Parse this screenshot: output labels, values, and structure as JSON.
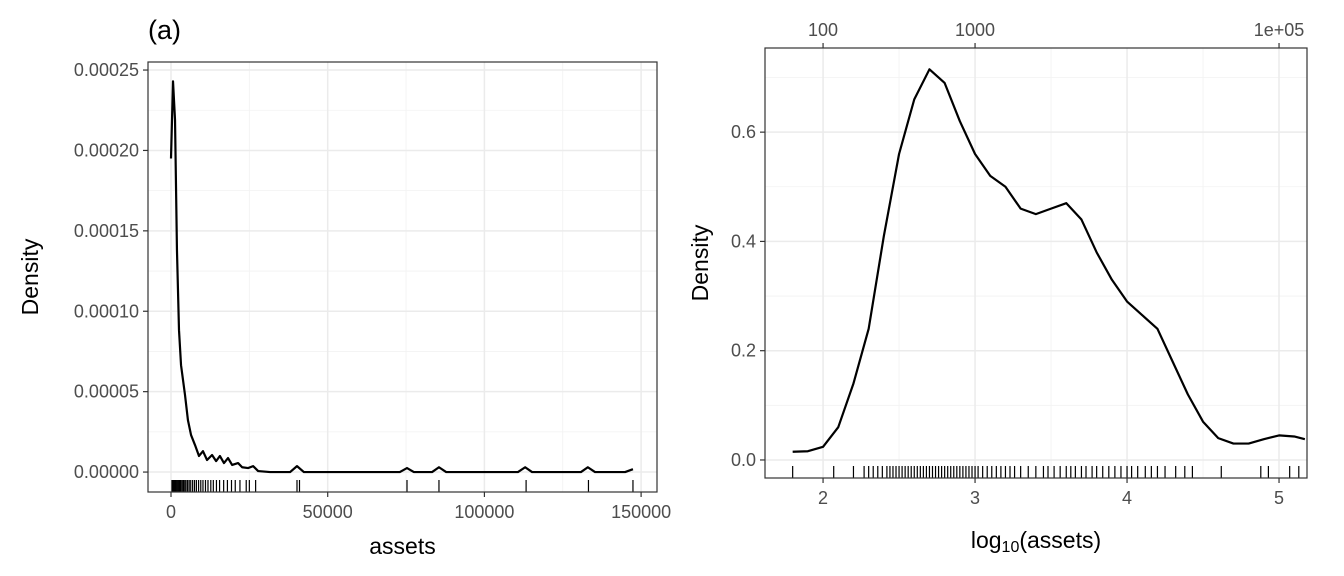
{
  "chart_data": [
    {
      "type": "line",
      "title": "(a)",
      "xlabel": "assets",
      "ylabel": "Density",
      "color": "#000000",
      "grid": true,
      "x": [
        0,
        640,
        1280,
        1900,
        2550,
        3200,
        4470,
        5400,
        6400,
        7660,
        8930,
        10200,
        11500,
        13100,
        14400,
        15600,
        16900,
        18200,
        19500,
        21400,
        22700,
        24600,
        26200,
        27800,
        31600,
        38000,
        40200,
        42400,
        47500,
        73000,
        75300,
        77500,
        83300,
        85500,
        87800,
        110700,
        113000,
        115200,
        130800,
        133000,
        135300,
        144900,
        147400
      ],
      "values": [
        0.000195,
        0.000243,
        0.000219,
        0.000138,
        8.83e-05,
        6.65e-05,
        4.79e-05,
        3.23e-05,
        2.3e-05,
        1.68e-05,
        1e-05,
        1.3e-05,
        7.5e-06,
        1.06e-05,
        6.8e-06,
        1e-05,
        5.6e-06,
        8.7e-06,
        4.4e-06,
        5.6e-06,
        3e-06,
        2.5e-06,
        3.7e-06,
        6e-07,
        0,
        0,
        3.7e-06,
        0,
        0,
        0,
        2.5e-06,
        0,
        0,
        3e-06,
        0,
        0,
        3e-06,
        0,
        0,
        3e-06,
        0,
        0,
        1.8e-06
      ],
      "rug": [
        300,
        500,
        700,
        900,
        1100,
        1300,
        1500,
        1700,
        2000,
        2300,
        2600,
        2900,
        3200,
        3600,
        4000,
        4400,
        4800,
        5300,
        5800,
        6300,
        6900,
        7500,
        8100,
        8800,
        9500,
        10200,
        11000,
        11800,
        12700,
        13500,
        14500,
        15500,
        16800,
        18000,
        19300,
        20500,
        22000,
        24000,
        25000,
        27000,
        40200,
        41000,
        75300,
        85500,
        113300,
        133200,
        147400
      ],
      "xlim": [
        -7340,
        155070
      ],
      "ylim": [
        -1.24e-05,
        0.000255
      ],
      "xticks": [
        0,
        50000,
        100000,
        150000
      ],
      "yticks": [
        {
          "value": 0,
          "label": "0.00000"
        },
        {
          "value": 5e-05,
          "label": "0.00005"
        },
        {
          "value": 0.0001,
          "label": "0.00010"
        },
        {
          "value": 0.00015,
          "label": "0.00015"
        },
        {
          "value": 0.0002,
          "label": "0.00020"
        },
        {
          "value": 0.00025,
          "label": "0.00025"
        }
      ],
      "minor_xticks": [
        25000,
        75000,
        125000
      ],
      "minor_yticks": [
        2.5e-05,
        7.5e-05,
        0.000125,
        0.000175,
        0.000225
      ]
    },
    {
      "type": "line",
      "xlabel": [
        "log",
        "10",
        "(assets)"
      ],
      "ylabel": "Density",
      "color": "#000000",
      "grid": true,
      "x": [
        1.8,
        1.9,
        2.0,
        2.1,
        2.2,
        2.3,
        2.4,
        2.5,
        2.6,
        2.7,
        2.8,
        2.9,
        3.0,
        3.1,
        3.2,
        3.3,
        3.4,
        3.5,
        3.6,
        3.7,
        3.8,
        3.9,
        4.0,
        4.1,
        4.2,
        4.3,
        4.4,
        4.5,
        4.6,
        4.7,
        4.8,
        4.9,
        5.0,
        5.1,
        5.17
      ],
      "values": [
        0.015,
        0.016,
        0.024,
        0.06,
        0.14,
        0.24,
        0.41,
        0.56,
        0.66,
        0.715,
        0.69,
        0.62,
        0.56,
        0.52,
        0.5,
        0.46,
        0.45,
        0.46,
        0.47,
        0.44,
        0.38,
        0.33,
        0.29,
        0.265,
        0.24,
        0.18,
        0.12,
        0.07,
        0.04,
        0.03,
        0.03,
        0.038,
        0.045,
        0.043,
        0.038
      ],
      "rug": [
        1.8,
        2.07,
        2.2,
        2.27,
        2.3,
        2.33,
        2.36,
        2.39,
        2.42,
        2.44,
        2.46,
        2.48,
        2.5,
        2.52,
        2.54,
        2.56,
        2.58,
        2.6,
        2.62,
        2.64,
        2.66,
        2.68,
        2.7,
        2.72,
        2.74,
        2.76,
        2.78,
        2.8,
        2.82,
        2.84,
        2.86,
        2.88,
        2.9,
        2.92,
        2.94,
        2.96,
        2.98,
        3.0,
        3.02,
        3.05,
        3.08,
        3.11,
        3.14,
        3.17,
        3.2,
        3.23,
        3.26,
        3.3,
        3.35,
        3.4,
        3.45,
        3.48,
        3.52,
        3.56,
        3.6,
        3.63,
        3.66,
        3.7,
        3.73,
        3.77,
        3.8,
        3.84,
        3.88,
        3.92,
        3.96,
        4.0,
        4.03,
        4.07,
        4.12,
        4.16,
        4.2,
        4.25,
        4.32,
        4.38,
        4.43,
        4.62,
        4.88,
        4.93,
        5.07,
        5.13
      ],
      "xlim": [
        1.618,
        5.184
      ],
      "ylim": [
        -0.033,
        0.754
      ],
      "xticks": [
        2,
        3,
        4,
        5
      ],
      "x2ticks": [
        {
          "value": 2,
          "label": "100"
        },
        {
          "value": 3,
          "label": "1000"
        },
        {
          "value": 5,
          "label": "1e+05"
        }
      ],
      "yticks": [
        {
          "value": 0,
          "label": "0.0"
        },
        0.2,
        0.4,
        0.6
      ],
      "minor_xticks": [
        2.5,
        3.5,
        4.5
      ],
      "minor_yticks": [
        0.1,
        0.3,
        0.5,
        0.7
      ]
    }
  ]
}
